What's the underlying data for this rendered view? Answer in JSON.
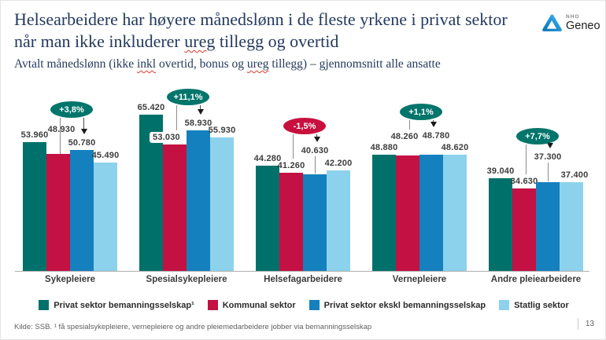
{
  "header": {
    "title_lines": [
      [
        {
          "t": "Helsearbeidere har høyere månedslønn i de fleste yrkene i privat sektor"
        }
      ],
      [
        {
          "t": "når man ikke inkluderer "
        },
        {
          "t": "ureg",
          "sp": true
        },
        {
          "t": " tillegg og overtid"
        }
      ]
    ],
    "subtitle_parts": [
      {
        "t": "Avtalt månedslønn (ikke "
      },
      {
        "t": "inkl",
        "sp": true
      },
      {
        "t": " overtid, bonus og "
      },
      {
        "t": "ureg",
        "sp": true
      },
      {
        "t": " tillegg) – gjennomsnitt alle ansatte"
      }
    ],
    "logo": {
      "top": "NHO",
      "name": "Geneo"
    }
  },
  "chart_data": {
    "type": "bar",
    "title": "Avtalt månedslønn (ikke inkl overtid, bonus og ureg tillegg) – gjennomsnitt alle ansatte",
    "categories": [
      "Sykepleiere",
      "Spesialsykepleiere",
      "Helsefagarbeidere",
      "Vernepleiere",
      "Andre pleiearbeidere"
    ],
    "series": [
      {
        "name": "Privat sektor bemanningsselskap¹",
        "color": "#00716a",
        "values": [
          53960,
          65420,
          44280,
          48880,
          39040
        ],
        "labels": [
          "53.960",
          "65.420",
          "44.280",
          "48.880",
          "39.040"
        ]
      },
      {
        "name": "Kommunal sektor",
        "color": "#c31143",
        "values": [
          48930,
          53030,
          41260,
          48260,
          34630
        ],
        "labels": [
          "48.930",
          "53.030",
          "41.260",
          "48.260",
          "34.630"
        ]
      },
      {
        "name": "Privat sektor ekskl bemanningsselskap",
        "color": "#1580be",
        "values": [
          50780,
          58930,
          40630,
          48780,
          37300
        ],
        "labels": [
          "50.780",
          "58.930",
          "40.630",
          "48.780",
          "37.300"
        ]
      },
      {
        "name": "Statlig sektor",
        "color": "#8dd2ec",
        "values": [
          45490,
          55930,
          42200,
          48620,
          37400
        ],
        "labels": [
          "45.490",
          "55.930",
          "42.200",
          "48.620",
          "37.400"
        ]
      }
    ],
    "badges": [
      {
        "label": "+3,8%",
        "color": "#00756b"
      },
      {
        "label": "+11,1%",
        "color": "#00756b"
      },
      {
        "label": "-1,5%",
        "color": "#c8103e"
      },
      {
        "label": "+1,1%",
        "color": "#00756b"
      },
      {
        "label": "+7,7%",
        "color": "#00756b"
      }
    ],
    "ylim": [
      0,
      66000
    ],
    "xlabel": "",
    "ylabel": "",
    "grid": false,
    "legend_position": "bottom"
  },
  "footer": {
    "source": "Kilde: SSB. ¹ få spesialsykepleiere, vernepleiere og andre pleiemedarbeidere jobber via bemanningsselskap",
    "page_number": "13"
  }
}
